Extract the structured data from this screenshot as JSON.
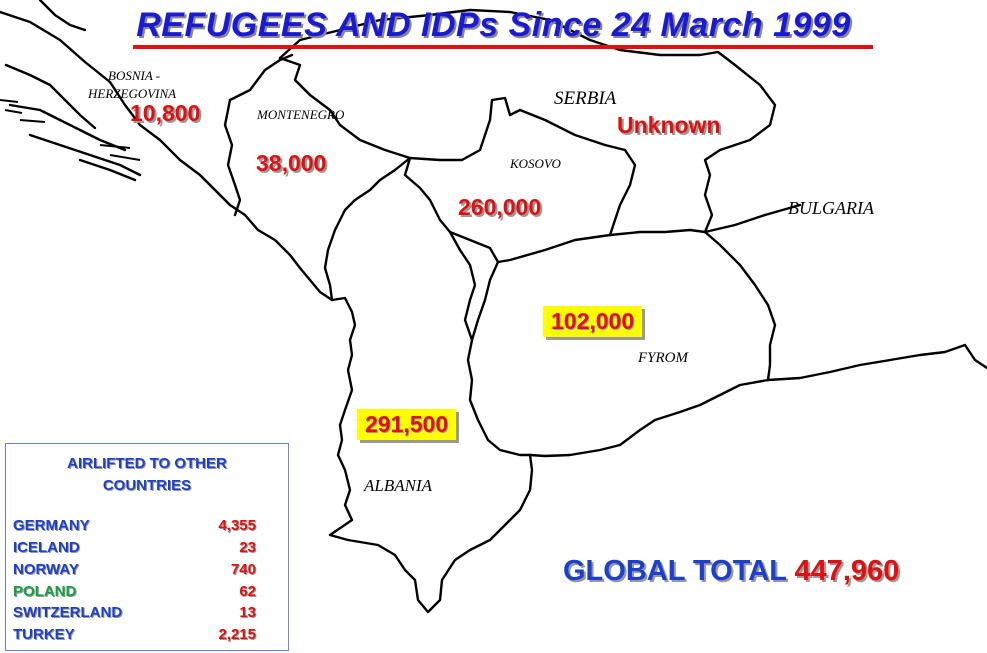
{
  "title": "REFUGEES AND IDPs Since 24 March 1999",
  "regions": [
    {
      "name": "BOSNIA -",
      "name2": "HERZEGOVINA",
      "value": "10,800"
    },
    {
      "name": "MONTENEGRO",
      "value": "38,000"
    },
    {
      "name": "SERBIA",
      "value": "Unknown"
    },
    {
      "name": "KOSOVO",
      "value": "260,000"
    },
    {
      "name": "BULGARIA"
    },
    {
      "name": "FYROM",
      "value": "102,000"
    },
    {
      "name": "ALBANIA",
      "value": "291,500"
    }
  ],
  "airlift": {
    "title_line1": "AIRLIFTED TO OTHER",
    "title_line2": "COUNTRIES",
    "countries": [
      {
        "name": "GERMANY",
        "value": "4,355",
        "color": "#1d3fd0"
      },
      {
        "name": "ICELAND",
        "value": "23",
        "color": "#1d3fd0"
      },
      {
        "name": "NORWAY",
        "value": "740",
        "color": "#1d3fd0"
      },
      {
        "name": "POLAND",
        "value": "62",
        "color": "#18a048"
      },
      {
        "name": "SWITZERLAND",
        "value": "13",
        "color": "#1d3fd0"
      },
      {
        "name": "TURKEY",
        "value": "2,215",
        "color": "#1d3fd0"
      }
    ]
  },
  "global_total": {
    "label": "GLOBAL TOTAL",
    "value": "447,960"
  },
  "colors": {
    "title": "#1a1ad6",
    "numbers": "#e01010",
    "highlight_box": "#ffff00",
    "underline": "#e01010"
  }
}
